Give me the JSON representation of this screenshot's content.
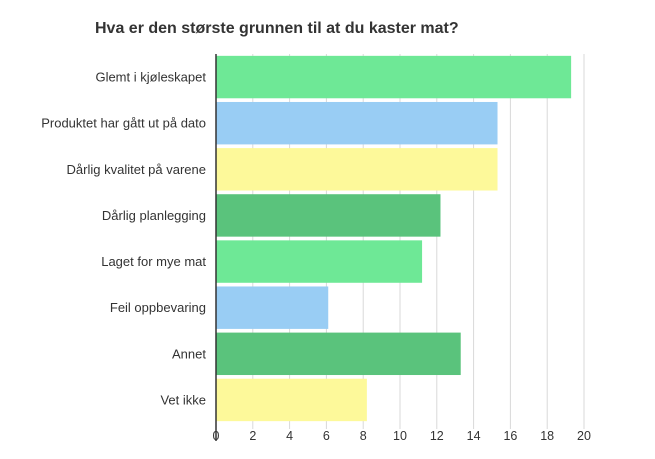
{
  "chart_data": {
    "type": "bar",
    "orientation": "horizontal",
    "title": "Hva er den største grunnen til at du kaster mat?",
    "categories": [
      "Glemt i kjøleskapet",
      "Produktet har gått ut på dato",
      "Dårlig kvalitet på varene",
      "Dårlig planlegging",
      "Laget for mye mat",
      "Feil oppbevaring",
      "Annet",
      "Vet ikke"
    ],
    "values": [
      19.3,
      15.3,
      15.3,
      12.2,
      11.2,
      6.1,
      13.3,
      8.2
    ],
    "colors": [
      "#6ee896",
      "#99cdf4",
      "#fdf99a",
      "#5ac37c",
      "#6ee896",
      "#99cdf4",
      "#5ac37c",
      "#fdf99a"
    ],
    "xlim": [
      0,
      20
    ],
    "xticks": [
      "0",
      "2",
      "4",
      "6",
      "8",
      "10",
      "12",
      "14",
      "16",
      "18",
      "20"
    ],
    "grid": true,
    "xlabel": "",
    "ylabel": ""
  }
}
